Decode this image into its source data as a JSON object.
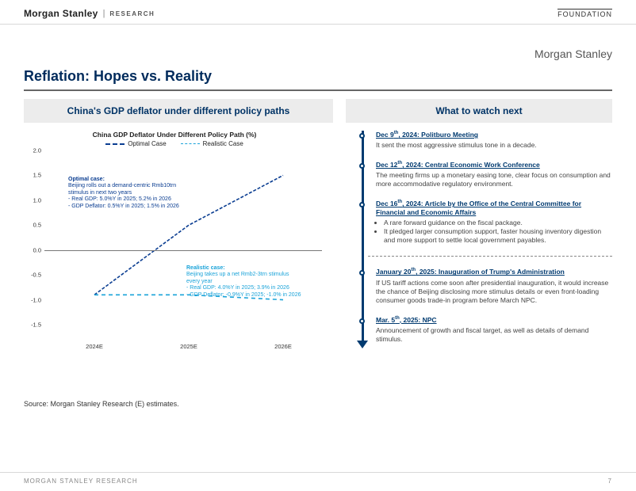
{
  "header": {
    "brand": "Morgan Stanley",
    "research": "RESEARCH",
    "foundation": "FOUNDATION",
    "brand_upper_right": "Morgan Stanley"
  },
  "slide": {
    "title": "Reflation: Hopes vs. Reality",
    "source": "Source: Morgan Stanley Research (E) estimates."
  },
  "left_panel": {
    "heading": "China's GDP deflator under different policy paths"
  },
  "chart": {
    "type": "line",
    "title": "China GDP Deflator Under Different Policy Path (%)",
    "x_labels": [
      "2024E",
      "2025E",
      "2026E"
    ],
    "x_positions_pct": [
      18,
      52,
      86
    ],
    "y_ticks": [
      -1.5,
      -1.0,
      -0.5,
      0.0,
      0.5,
      1.0,
      1.5,
      2.0
    ],
    "ylim_min": -1.5,
    "ylim_max": 2.0,
    "zero_line_color": "#777777",
    "background_color": "#ffffff",
    "title_fontsize": 8.5,
    "tick_fontsize": 7.5,
    "series": {
      "optimal": {
        "label": "Optimal Case",
        "color": "#0a3d91",
        "dash": "4,2",
        "width": 1.6,
        "values": [
          -0.9,
          0.5,
          1.5
        ]
      },
      "realistic": {
        "label": "Realistic Case",
        "color": "#1aa3d9",
        "dash": "5,4",
        "width": 1.6,
        "values": [
          -0.9,
          -0.9,
          -1.0
        ]
      }
    },
    "annot_optimal": {
      "title": "Optimal case:",
      "line1": "Beijing rolls out a demand-centric Rmb10trn",
      "line2": "stimulus in next two years",
      "line3": "- Real GDP: 5.0%Y in 2025; 5.2% in 2026",
      "line4": "- GDP Deflator: 0.5%Y in 2025; 1.5% in 2026",
      "color": "#0a3d91"
    },
    "annot_realistic": {
      "title": "Realistic case:",
      "line1": "Beijing takes up a net Rmb2-3trn stimulus",
      "line2": "every year",
      "line3": "- Real GDP: 4.0%Y in 2025; 3.9% in 2026",
      "line4": "- GDP Deflator: -0.9%Y in 2025; -1.0% in 2026",
      "color": "#1aa3d9"
    }
  },
  "right_panel": {
    "heading": "What to watch next",
    "items": [
      {
        "date_prefix": "Dec 9",
        "date_sup": "th",
        "date_suffix": ", 2024: Politburo Meeting",
        "body": "It sent the most aggressive stimulus tone in a decade."
      },
      {
        "date_prefix": "Dec 12",
        "date_sup": "th",
        "date_suffix": ", 2024: Central Economic Work Conference",
        "body": "The meeting firms up a monetary easing tone, clear focus on consumption and more accommodative regulatory environment."
      },
      {
        "date_prefix": "Dec 16",
        "date_sup": "th",
        "date_suffix": ", 2024: Article by the Office of the Central Committee for Financial and Economic Affairs",
        "body_list": [
          "A rare forward guidance on the fiscal package.",
          "It pledged larger consumption support, faster housing inventory digestion and more support to settle local government payables."
        ]
      },
      {
        "sep": true
      },
      {
        "date_prefix": "January 20",
        "date_sup": "th",
        "date_suffix": ", 2025: Inauguration of Trump's Administration",
        "body": "If US tariff actions come soon after presidential inauguration, it would increase the chance of Beijing disclosing more stimulus details or even front-loading consumer goods trade-in program before March NPC."
      },
      {
        "date_prefix": "Mar. 5",
        "date_sup": "th",
        "date_suffix": ", 2025: NPC",
        "body": "Announcement of growth and fiscal target, as well as details of demand stimulus."
      }
    ]
  },
  "footer": {
    "left": "MORGAN STANLEY RESEARCH",
    "page": "7"
  }
}
